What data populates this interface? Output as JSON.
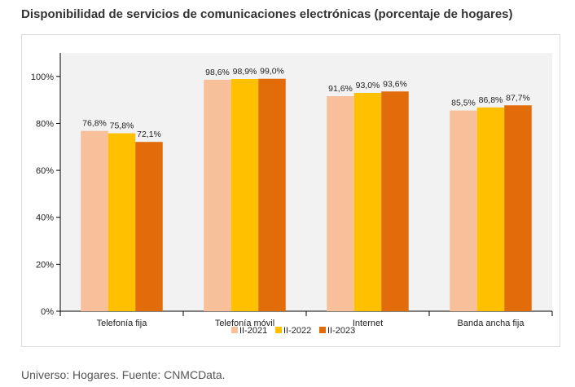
{
  "title": "Disponibilidad de servicios de comunicaciones electrónicas (porcentaje de hogares)",
  "footnote": "Universo: Hogares. Fuente: CNMCData.",
  "chart_data": {
    "type": "bar",
    "categories": [
      "Telefonía fija",
      "Telefonía móvil",
      "Internet",
      "Banda ancha fija"
    ],
    "series": [
      {
        "name": "II-2021",
        "color": "#f8c09a",
        "values": [
          76.8,
          98.6,
          91.6,
          85.5
        ],
        "labels": [
          "76,8%",
          "98,6%",
          "91,6%",
          "85,5%"
        ]
      },
      {
        "name": "II-2022",
        "color": "#ffc000",
        "values": [
          75.8,
          98.9,
          93.0,
          86.8
        ],
        "labels": [
          "75,8%",
          "98,9%",
          "93,0%",
          "86,8%"
        ]
      },
      {
        "name": "II-2023",
        "color": "#e36c0a",
        "values": [
          72.1,
          99.0,
          93.6,
          87.7
        ],
        "labels": [
          "72,1%",
          "99,0%",
          "93,6%",
          "87,7%"
        ]
      }
    ],
    "ylim": [
      0,
      110
    ],
    "yticks": [
      0,
      20,
      40,
      60,
      80,
      100
    ],
    "ytick_labels": [
      "0%",
      "20%",
      "40%",
      "60%",
      "80%",
      "100%"
    ],
    "plot_background": "#f2f2f2",
    "grid": false,
    "legend_position": "bottom-center"
  }
}
